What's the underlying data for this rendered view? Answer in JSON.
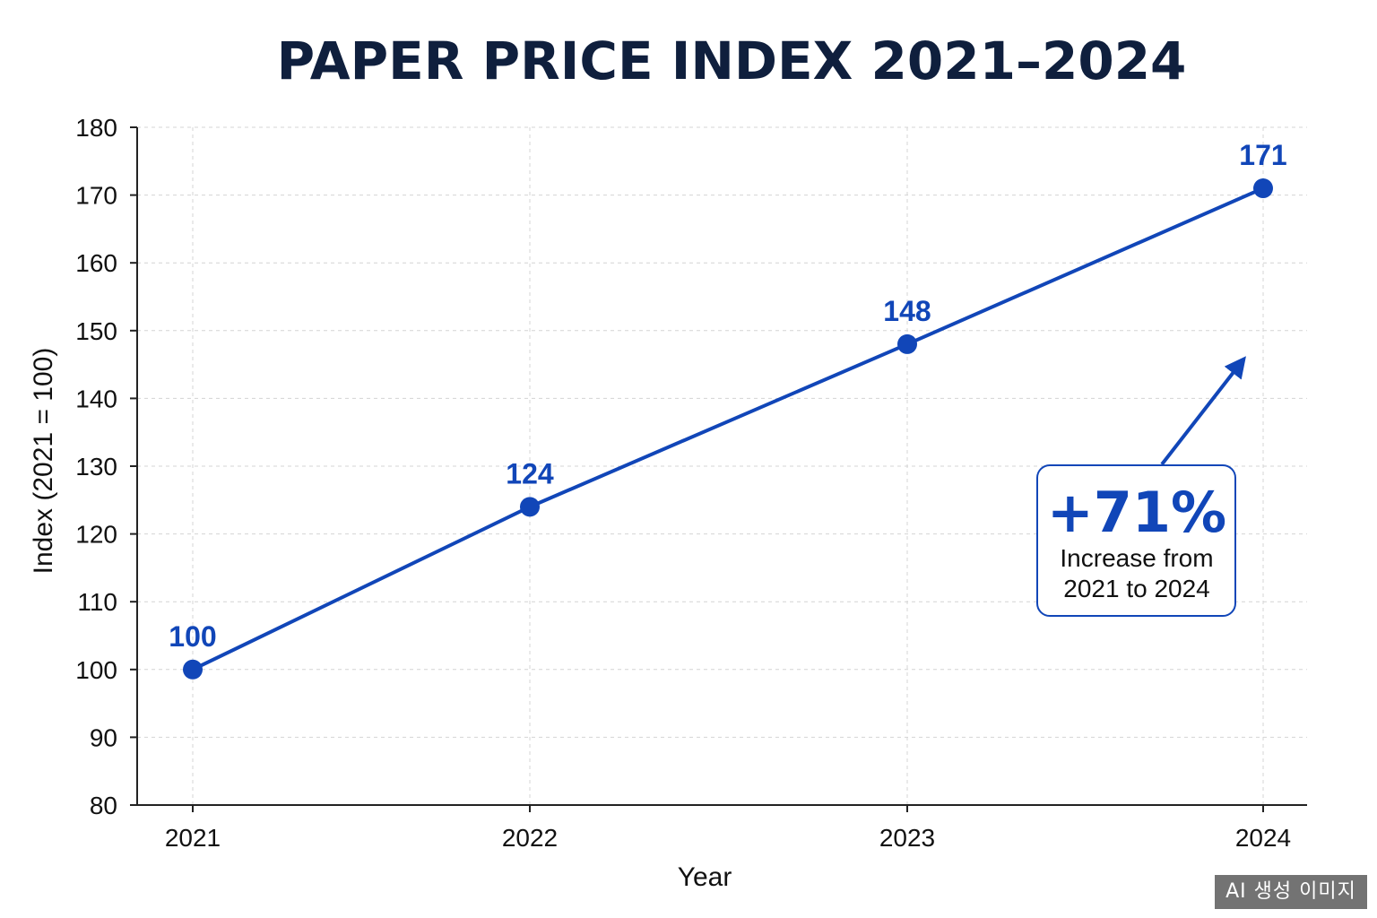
{
  "chart_data": {
    "type": "line",
    "title": "PAPER PRICE INDEX 2021–2024",
    "xlabel": "Year",
    "ylabel": "Index (2021 = 100)",
    "categories": [
      "2021",
      "2022",
      "2023",
      "2024"
    ],
    "series": [
      {
        "values": [
          100,
          124,
          148,
          171
        ],
        "data_labels": [
          "100",
          "124",
          "148",
          "171"
        ]
      }
    ],
    "ylim": [
      80,
      180
    ],
    "yticks": [
      80,
      90,
      100,
      110,
      120,
      130,
      140,
      150,
      160,
      170,
      180
    ],
    "grid": true,
    "colors": {
      "series": "#1146b8",
      "title": "#0f1f3d"
    },
    "annotation": {
      "value": "+71%",
      "line1": "Increase from",
      "line2": "2021 to 2024"
    }
  },
  "watermark": "AI 생성 이미지"
}
